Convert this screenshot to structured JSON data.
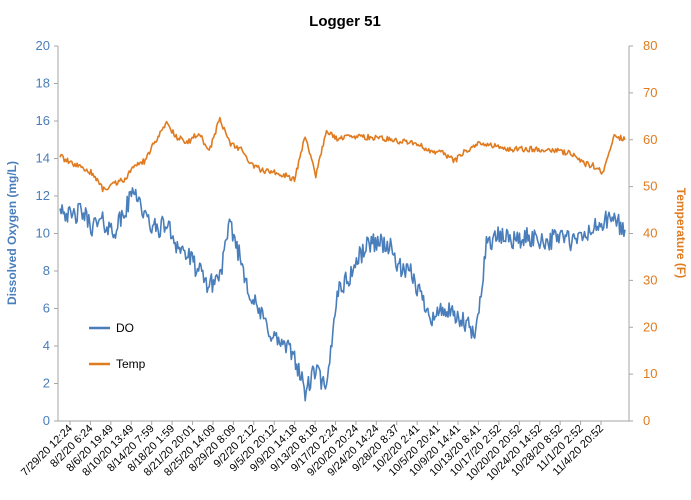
{
  "chart_data": {
    "type": "line",
    "title": "Logger 51",
    "xlabel": "",
    "y_left_label": "Dissolved Oxygen (mg/L)",
    "y_right_label": "Temperature (F)",
    "y_left_lim": [
      0,
      20
    ],
    "y_right_lim": [
      0,
      80
    ],
    "y_left_ticks": [
      "0",
      "2",
      "4",
      "6",
      "8",
      "10",
      "12",
      "14",
      "16",
      "18",
      "20"
    ],
    "y_right_ticks": [
      "0",
      "10",
      "20",
      "30",
      "40",
      "50",
      "60",
      "70",
      "80"
    ],
    "x_tick_labels": [
      "7/29/20 12:24",
      "8/2/20 6:24",
      "8/6/20 19:49",
      "8/10/20 13:49",
      "8/14/20 7:59",
      "8/18/20 1:59",
      "8/21/20 20:01",
      "8/25/20 14:09",
      "8/29/20 8:09",
      "9/2/20 2:12",
      "9/5/20 20:12",
      "9/9/20 14:18",
      "9/13/20 8:18",
      "9/17/20 2:24",
      "9/20/20 20:24",
      "9/24/20 14:24",
      "9/28/20 8:37",
      "10/2/20 2:41",
      "10/5/20 20:41",
      "10/9/20 14:41",
      "10/13/20 8:41",
      "10/17/20 2:52",
      "10/20/20 20:52",
      "10/24/20 14:52",
      "10/28/20 8:52",
      "11/1/20 2:52",
      "11/4/20 20:52"
    ],
    "grid": false,
    "legend_position": "left-middle",
    "colors": {
      "DO": "#4a7ebb",
      "Temp": "#e07b1f",
      "axis": "#a6a6a6"
    },
    "series": [
      {
        "name": "DO",
        "axis": "left",
        "x": [
          "7/29/20 12:24",
          "7/31/20",
          "8/2/20 6:24",
          "8/4/20",
          "8/6/20 19:49",
          "8/8/20",
          "8/10/20 13:49",
          "8/12/20",
          "8/14/20 7:59",
          "8/16/20",
          "8/18/20 1:59",
          "8/20/20",
          "8/21/20 20:01",
          "8/23/20",
          "8/25/20 14:09",
          "8/27/20",
          "8/29/20 8:09",
          "8/31/20",
          "9/2/20 2:12",
          "9/4/20",
          "9/5/20 20:12",
          "9/7/20",
          "9/9/20 14:18",
          "9/11/20",
          "9/13/20 8:18",
          "9/15/20",
          "9/17/20 2:24",
          "9/19/20",
          "9/20/20 20:24",
          "9/22/20",
          "9/24/20 14:24",
          "9/26/20",
          "9/28/20 8:37",
          "9/30/20",
          "10/2/20 2:41",
          "10/4/20",
          "10/5/20 20:41",
          "10/7/20",
          "10/9/20 14:41",
          "10/11/20",
          "10/13/20 8:41",
          "10/15/20",
          "10/17/20 2:52",
          "10/19/20",
          "10/20/20 20:52",
          "10/22/20",
          "10/24/20 14:52",
          "10/26/20",
          "10/28/20 8:52",
          "10/30/20",
          "11/1/20 2:52",
          "11/3/20",
          "11/4/20 20:52",
          "11/6/20"
        ],
        "values": [
          11.6,
          10.8,
          11.2,
          10.4,
          10.6,
          10.1,
          11.0,
          12.5,
          10.8,
          10.2,
          10.5,
          9.4,
          8.8,
          8.0,
          7.2,
          7.8,
          10.5,
          8.5,
          6.5,
          5.5,
          4.5,
          4.0,
          3.5,
          1.5,
          2.8,
          1.5,
          7.0,
          7.5,
          8.7,
          9.5,
          9.6,
          9.2,
          8.0,
          7.8,
          6.5,
          5.5,
          6.0,
          5.5,
          5.2,
          4.5,
          9.5,
          9.8,
          9.8,
          9.6,
          9.8,
          9.7,
          9.6,
          10.0,
          9.5,
          9.8,
          10.2,
          10.6,
          10.8,
          10.2
        ]
      },
      {
        "name": "Temp",
        "axis": "right",
        "x": [
          "7/29/20 12:24",
          "7/31/20",
          "8/2/20 6:24",
          "8/4/20",
          "8/6/20 19:49",
          "8/8/20",
          "8/10/20 13:49",
          "8/12/20",
          "8/14/20 7:59",
          "8/16/20",
          "8/18/20 1:59",
          "8/20/20",
          "8/21/20 20:01",
          "8/23/20",
          "8/25/20 14:09",
          "8/27/20",
          "8/29/20 8:09",
          "8/31/20",
          "9/2/20 2:12",
          "9/4/20",
          "9/5/20 20:12",
          "9/7/20",
          "9/9/20 14:18",
          "9/11/20",
          "9/13/20 8:18",
          "9/15/20",
          "9/17/20 2:24",
          "9/19/20",
          "9/20/20 20:24",
          "9/22/20",
          "9/24/20 14:24",
          "9/26/20",
          "9/28/20 8:37",
          "9/30/20",
          "10/2/20 2:41",
          "10/4/20",
          "10/5/20 20:41",
          "10/7/20",
          "10/9/20 14:41",
          "10/11/20",
          "10/13/20 8:41",
          "10/15/20",
          "10/17/20 2:52",
          "10/19/20",
          "10/20/20 20:52",
          "10/22/20",
          "10/24/20 14:52",
          "10/26/20",
          "10/28/20 8:52",
          "10/30/20",
          "11/1/20 2:52",
          "11/3/20",
          "11/4/20 20:52",
          "11/6/20"
        ],
        "values": [
          56.5,
          55.0,
          54.0,
          53.0,
          49.5,
          50.5,
          51.5,
          54.5,
          55.5,
          60.0,
          63.5,
          60.5,
          59.5,
          61.5,
          57.5,
          64.5,
          59.0,
          58.0,
          54.5,
          53.5,
          53.0,
          52.5,
          51.5,
          61.0,
          52.5,
          62.0,
          60.0,
          61.0,
          60.5,
          60.5,
          60.5,
          60.0,
          59.5,
          59.5,
          58.5,
          57.5,
          57.0,
          55.5,
          57.5,
          59.0,
          59.0,
          58.5,
          58.0,
          58.0,
          58.0,
          58.0,
          58.0,
          57.5,
          57.0,
          55.0,
          54.5,
          53.0,
          61.0,
          60.0
        ]
      }
    ]
  }
}
